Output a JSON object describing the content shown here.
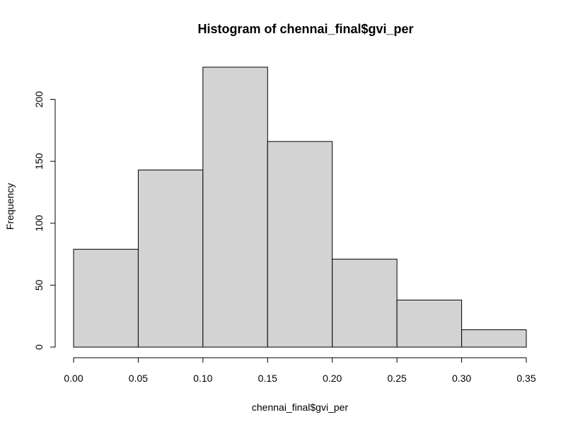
{
  "chart_data": {
    "type": "bar",
    "title": "Histogram of chennai_final$gvi_per",
    "xlabel": "chennai_final$gvi_per",
    "ylabel": "Frequency",
    "bins": [
      {
        "from": 0.0,
        "to": 0.05,
        "count": 79
      },
      {
        "from": 0.05,
        "to": 0.1,
        "count": 143
      },
      {
        "from": 0.1,
        "to": 0.15,
        "count": 226
      },
      {
        "from": 0.15,
        "to": 0.2,
        "count": 166
      },
      {
        "from": 0.2,
        "to": 0.25,
        "count": 71
      },
      {
        "from": 0.25,
        "to": 0.3,
        "count": 38
      },
      {
        "from": 0.3,
        "to": 0.35,
        "count": 14
      }
    ],
    "xticks": [
      "0.00",
      "0.05",
      "0.10",
      "0.15",
      "0.20",
      "0.25",
      "0.30",
      "0.35"
    ],
    "yticks": [
      "0",
      "50",
      "100",
      "150",
      "200"
    ],
    "xlim": [
      0,
      0.35
    ],
    "ylim": [
      0,
      226
    ],
    "grid": false,
    "bar_fill": "#d3d3d3",
    "bar_stroke": "#000000"
  }
}
